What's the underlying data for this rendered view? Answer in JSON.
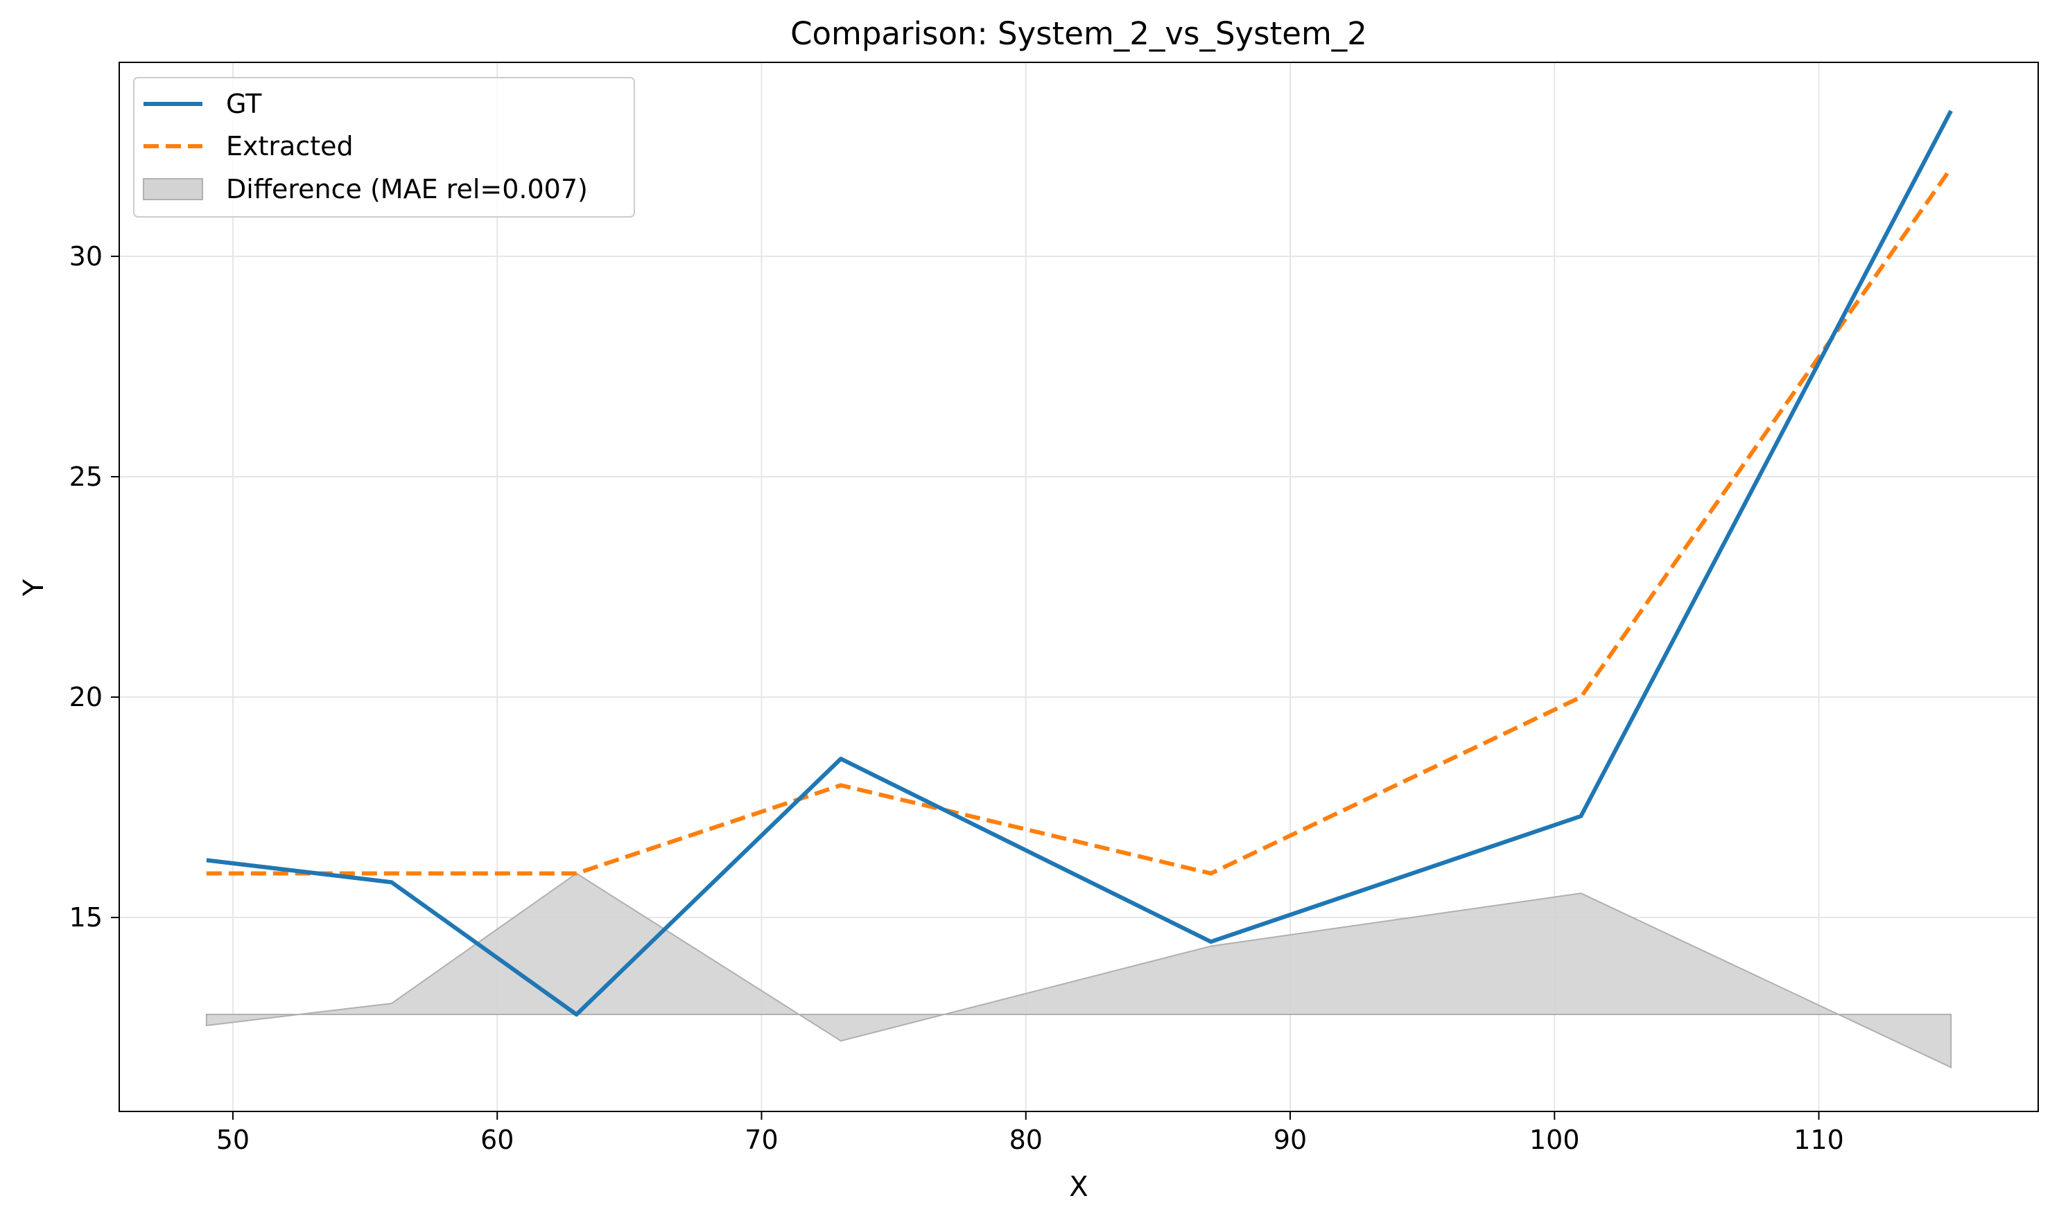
{
  "colors": {
    "gt": "#1f77b4",
    "extracted": "#ff7f0e",
    "difference_fill": "#d3d3d3",
    "difference_edge": "#b0b0b0",
    "grid": "#e6e6e6",
    "axis": "#000000"
  },
  "chart_data": {
    "type": "line",
    "title": "Comparison: System_2_vs_System_2",
    "xlabel": "X",
    "ylabel": "Y",
    "xlim": [
      45.7,
      118.3
    ],
    "ylim": [
      10.6,
      34.4
    ],
    "xticks": [
      50,
      60,
      70,
      80,
      90,
      100,
      110
    ],
    "yticks": [
      15,
      20,
      25,
      30
    ],
    "xtick_labels": [
      "50",
      "60",
      "70",
      "80",
      "90",
      "100",
      "110"
    ],
    "ytick_labels": [
      "15",
      "20",
      "25",
      "30"
    ],
    "grid": true,
    "legend_position": "upper left",
    "series": [
      {
        "name": "GT",
        "style": "solid",
        "x": [
          49,
          56,
          63,
          73,
          87,
          101,
          115
        ],
        "y": [
          16.3,
          15.8,
          12.8,
          18.6,
          14.45,
          17.3,
          33.3
        ]
      },
      {
        "name": "Extracted",
        "style": "dashed",
        "x": [
          49,
          56,
          63,
          73,
          87,
          101,
          115
        ],
        "y": [
          16.0,
          16.0,
          16.0,
          18.0,
          16.0,
          20.0,
          32.0
        ]
      }
    ],
    "difference": {
      "name": "Difference (MAE rel=0.007)",
      "baseline": 12.8,
      "x": [
        49,
        56,
        63,
        73,
        87,
        101,
        115
      ],
      "y": [
        12.55,
        13.05,
        16.0,
        12.2,
        14.35,
        15.55,
        11.6
      ]
    }
  }
}
